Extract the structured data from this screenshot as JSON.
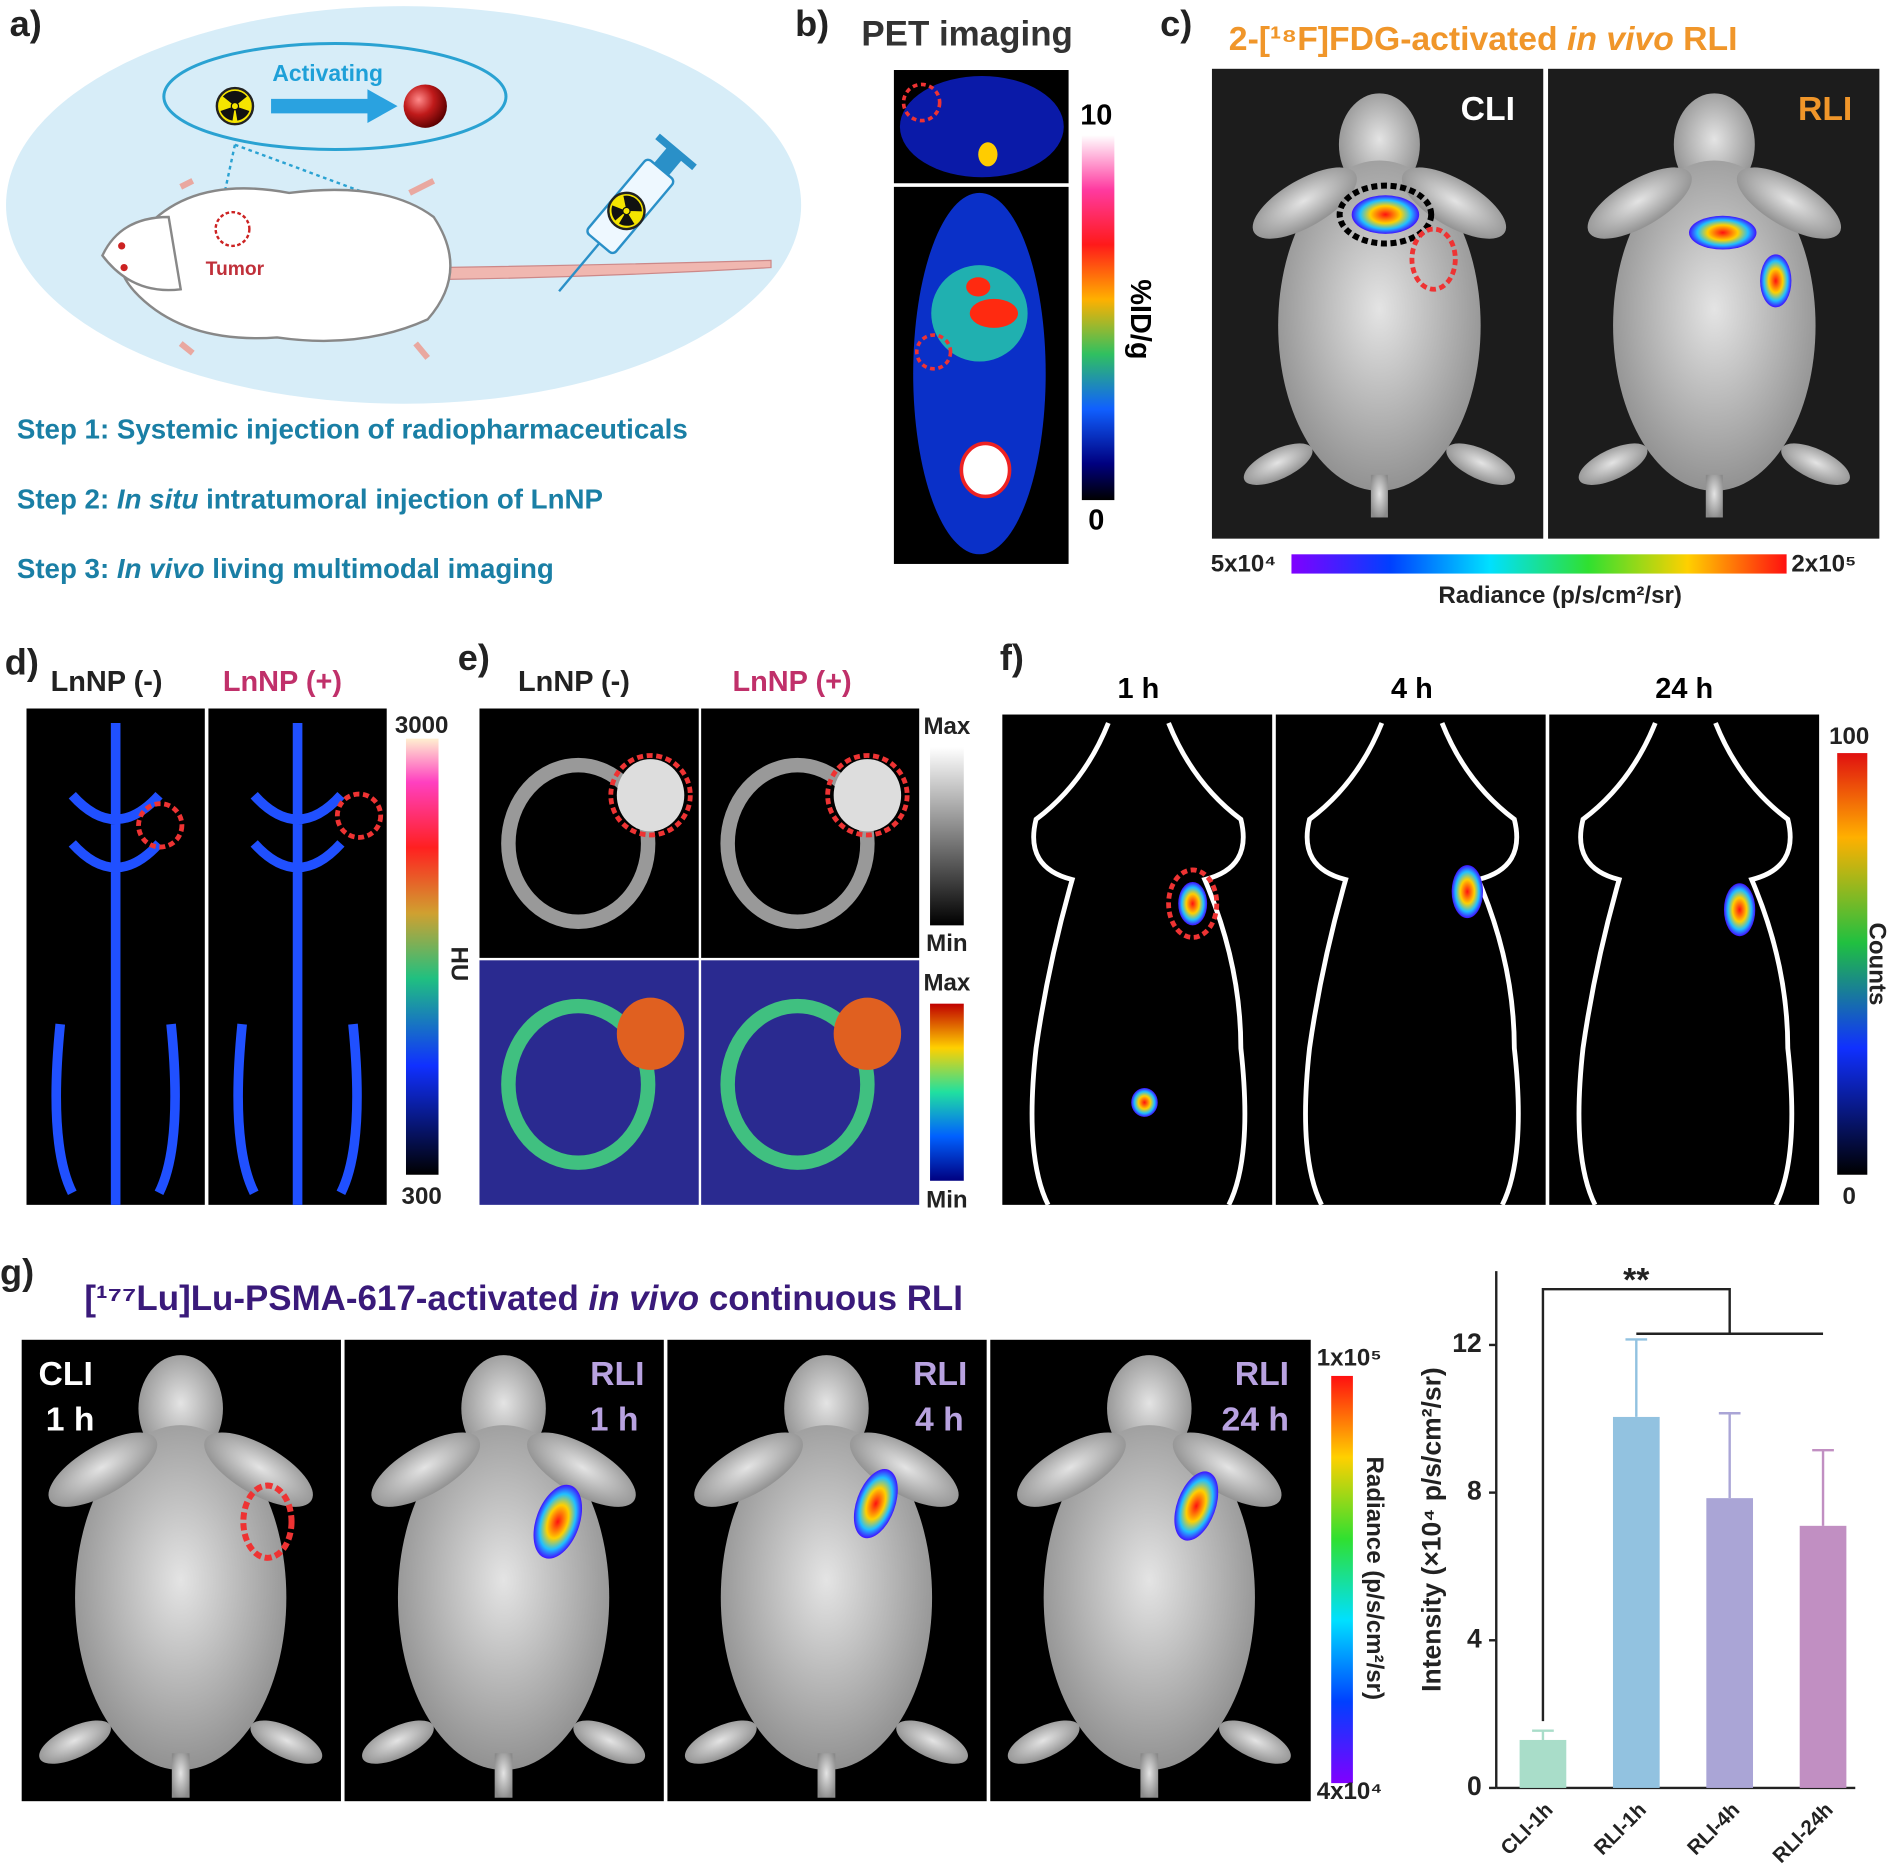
{
  "panels": {
    "a": {
      "label": "a)",
      "activating": "Activating",
      "tumor": "Tumor",
      "steps": [
        [
          "Step 1: Systemic injection of radiopharmaceuticals"
        ],
        [
          "Step 2: ",
          "In situ",
          " intratumoral injection of LnNP"
        ],
        [
          "Step 3: ",
          "In vivo",
          " living multimodal imaging"
        ]
      ]
    },
    "b": {
      "label": "b)",
      "title": "PET imaging",
      "scale_max": "10",
      "scale_min": "0",
      "scale_unit": "%ID/g"
    },
    "c": {
      "label": "c)",
      "title": [
        "2-[¹⁸F]FDG-activated ",
        "in vivo",
        " RLI"
      ],
      "image_labels": [
        "CLI",
        "RLI"
      ],
      "scale_min": "5x10⁴",
      "scale_max": "2x10⁵",
      "scale_unit": "Radiance (p/s/cm²/sr)"
    },
    "d": {
      "label": "d)",
      "image_labels": [
        "LnNP (-)",
        "LnNP (+)"
      ],
      "scale_max": "3000",
      "scale_min": "300",
      "scale_unit": "HU"
    },
    "e": {
      "label": "e)",
      "image_labels": [
        "LnNP (-)",
        "LnNP (+)"
      ],
      "gray_max": "Max",
      "gray_min": "Min",
      "color_max": "Max",
      "color_min": "Min"
    },
    "f": {
      "label": "f)",
      "image_labels": [
        "1 h",
        "4 h",
        "24 h"
      ],
      "scale_max": "100",
      "scale_min": "0",
      "scale_unit": "Counts"
    },
    "g": {
      "label": "g)",
      "title": [
        "[¹⁷⁷Lu]Lu-PSMA-617-activated ",
        "in vivo",
        " continuous RLI"
      ],
      "image_labels": [
        [
          "CLI",
          "1 h"
        ],
        [
          "RLI",
          "1 h"
        ],
        [
          "RLI",
          "4 h"
        ],
        [
          "RLI",
          "24 h"
        ]
      ],
      "scale_max": "1x10⁵",
      "scale_min": "4x10⁴",
      "scale_unit": "Radiance (p/s/cm²/sr)"
    }
  },
  "chart_data": {
    "type": "bar",
    "categories": [
      "CLI-1h",
      "RLI-1h",
      "RLI-4h",
      "RLI-24h"
    ],
    "values": [
      1.3,
      10.05,
      7.85,
      7.1
    ],
    "errors": [
      0.25,
      2.1,
      2.3,
      2.05
    ],
    "colors": [
      "#a9ddc9",
      "#92c2e0",
      "#aaa5d6",
      "#c18fc2"
    ],
    "y_label": "Intensity (×10⁴ p/s/cm²/sr)",
    "significance": "**",
    "ylim": [
      0,
      14
    ],
    "yticks": [
      0,
      4,
      8,
      12
    ]
  }
}
